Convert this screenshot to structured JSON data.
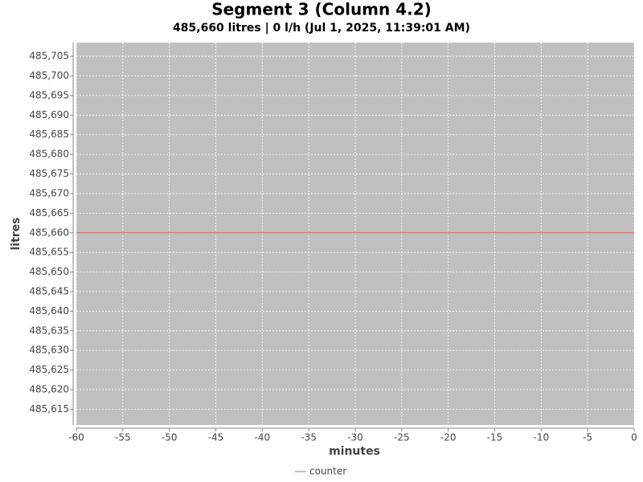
{
  "chart_data": {
    "type": "line",
    "title": "Segment  3 (Column  4.2)",
    "subtitle": "485,660 litres | 0 l/h (Jul 1, 2025, 11:39:01 AM)",
    "x_label": "minutes",
    "y_label": "litres",
    "x": [
      -60,
      0
    ],
    "series": [
      {
        "name": "counter",
        "color": "#e05a5a",
        "values": [
          485660,
          485660
        ]
      }
    ],
    "xlim": [
      -60,
      0
    ],
    "xticks": [
      -60,
      -55,
      -50,
      -45,
      -40,
      -35,
      -30,
      -25,
      -20,
      -15,
      -10,
      -5,
      0
    ],
    "ylim": [
      485611,
      485708.5
    ],
    "yticks": [
      {
        "value": 485615,
        "label": "485,615"
      },
      {
        "value": 485620,
        "label": "485,620"
      },
      {
        "value": 485625,
        "label": "485,625"
      },
      {
        "value": 485630,
        "label": "485,630"
      },
      {
        "value": 485635,
        "label": "485,635"
      },
      {
        "value": 485640,
        "label": "485,640"
      },
      {
        "value": 485645,
        "label": "485,645"
      },
      {
        "value": 485650,
        "label": "485,650"
      },
      {
        "value": 485655,
        "label": "485,655"
      },
      {
        "value": 485660,
        "label": "485,660"
      },
      {
        "value": 485665,
        "label": "485,665"
      },
      {
        "value": 485670,
        "label": "485,670"
      },
      {
        "value": 485675,
        "label": "485,675"
      },
      {
        "value": 485680,
        "label": "485,680"
      },
      {
        "value": 485685,
        "label": "485,685"
      },
      {
        "value": 485690,
        "label": "485,690"
      },
      {
        "value": 485695,
        "label": "485,695"
      },
      {
        "value": 485700,
        "label": "485,700"
      },
      {
        "value": 485705,
        "label": "485,705"
      }
    ],
    "grid": true,
    "legend": "bottom"
  }
}
